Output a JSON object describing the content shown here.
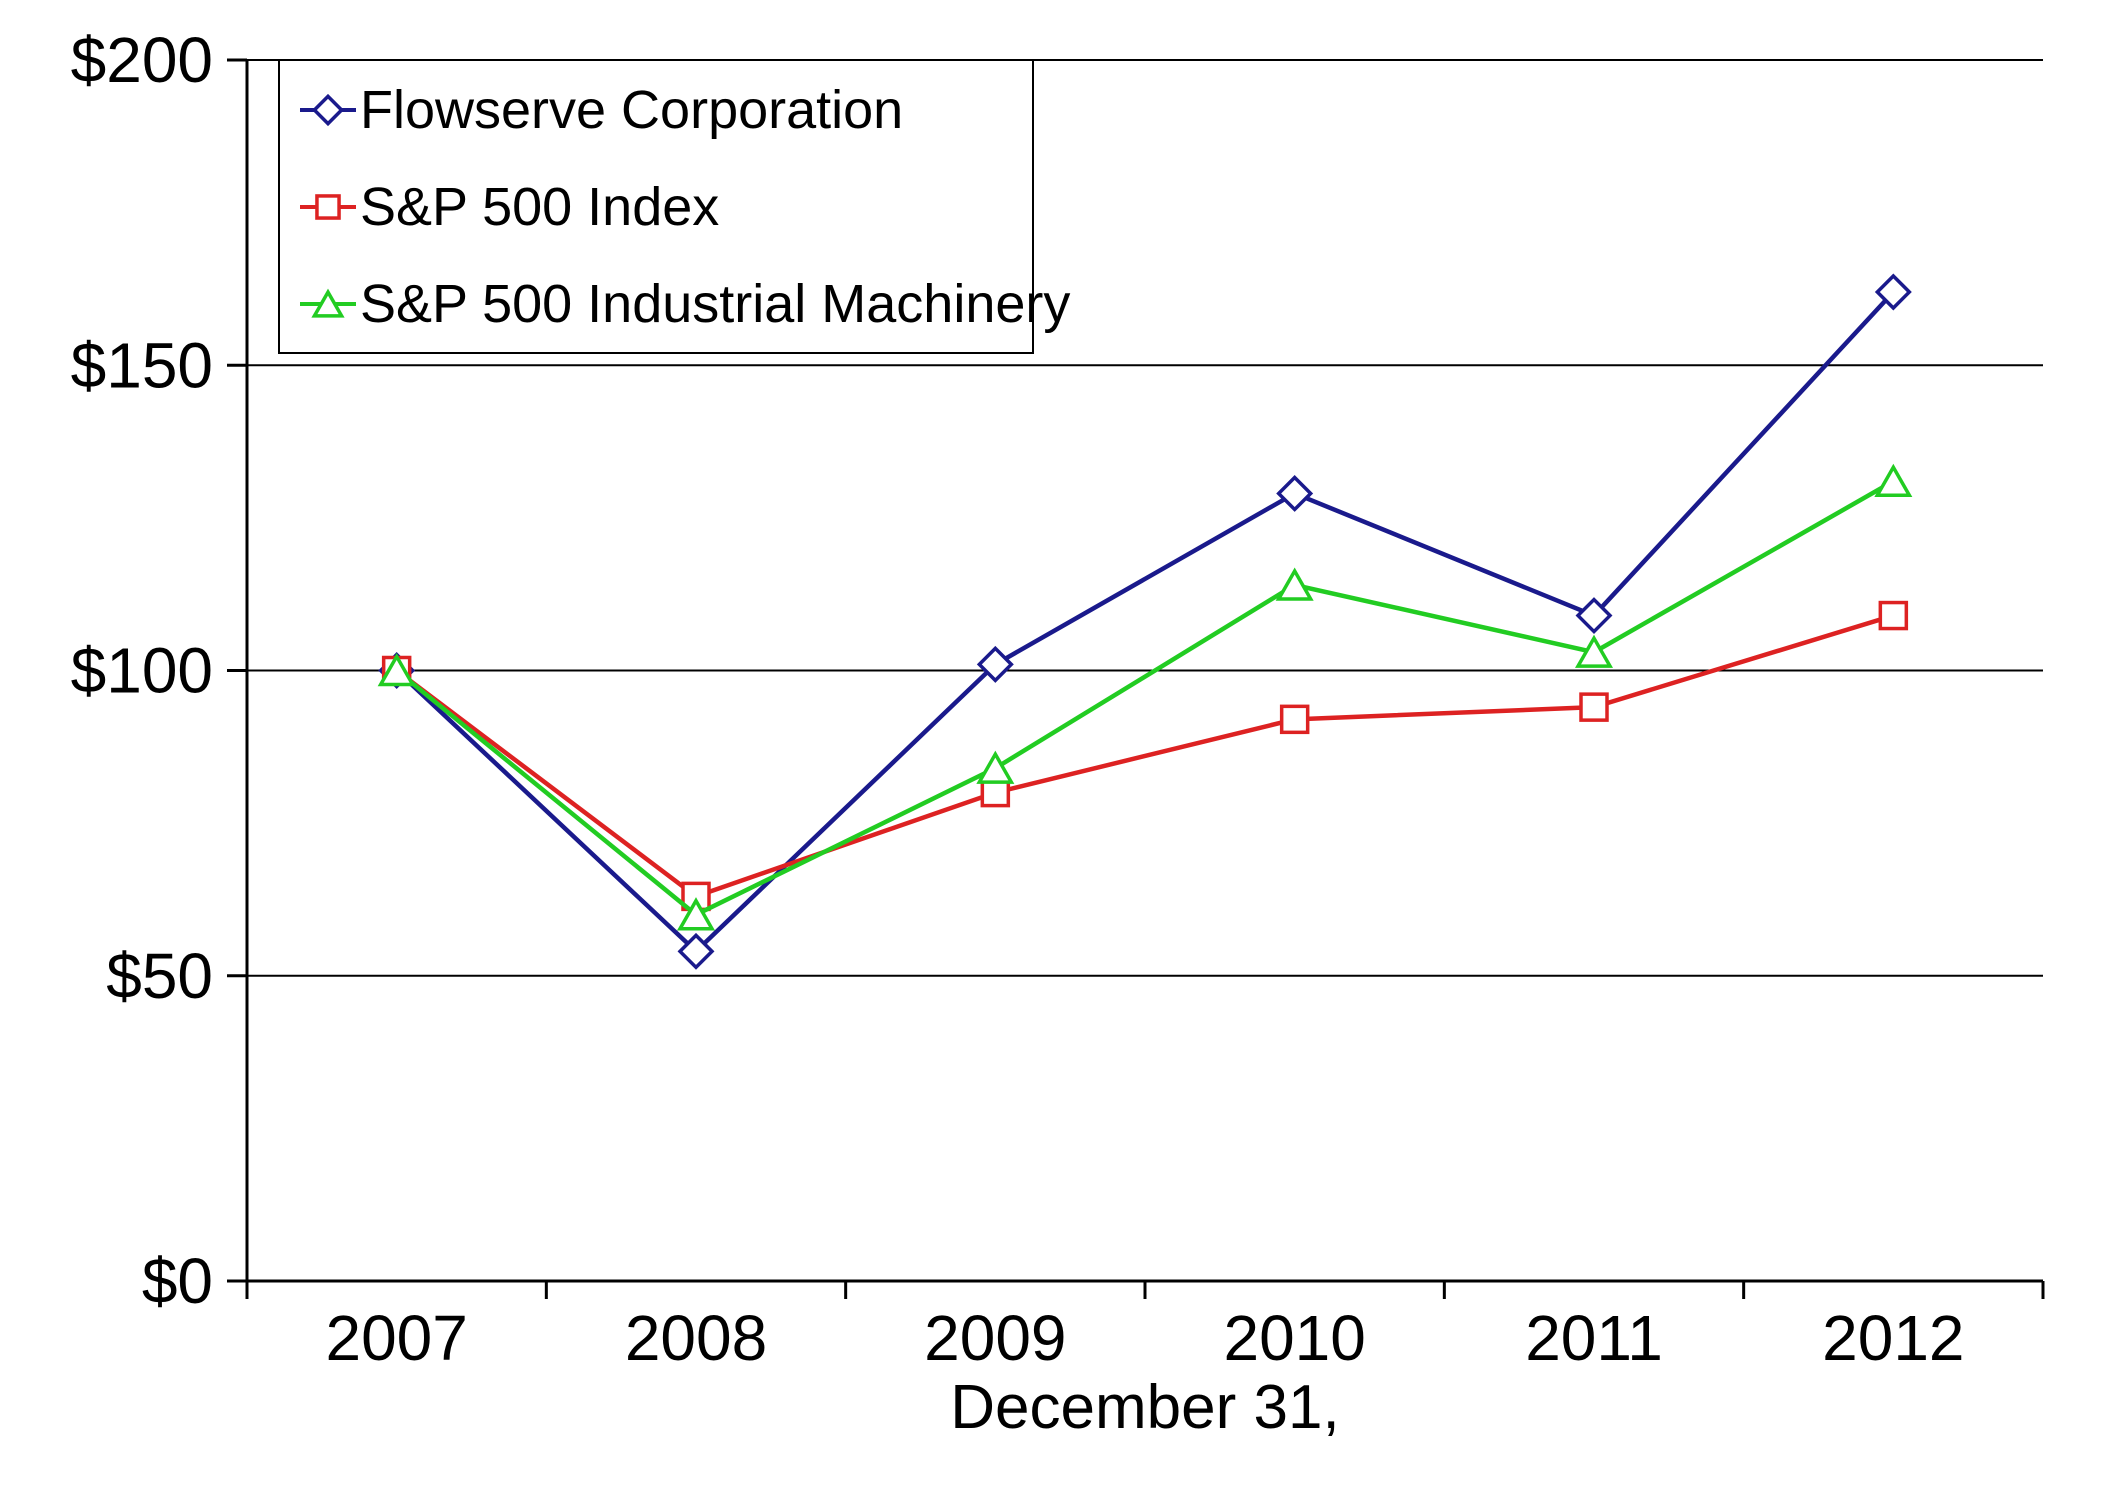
{
  "chart_data": {
    "type": "line",
    "title": "",
    "xlabel": "December 31,",
    "ylabel": "",
    "categories": [
      "2007",
      "2008",
      "2009",
      "2010",
      "2011",
      "2012"
    ],
    "series": [
      {
        "name": "Flowserve Corporation",
        "marker": "diamond",
        "color": "#1A1A8C",
        "values": [
          100,
          54,
          101,
          129,
          109,
          162
        ]
      },
      {
        "name": "S&P 500 Index",
        "marker": "square",
        "color": "#DD2222",
        "values": [
          100,
          63,
          80,
          92,
          94,
          109
        ]
      },
      {
        "name": "S&P 500 Industrial Machinery",
        "marker": "triangle",
        "color": "#22CC22",
        "values": [
          100,
          60,
          84,
          114,
          103,
          131
        ]
      }
    ],
    "ylim": [
      0,
      200
    ],
    "y_ticks": [
      {
        "value": 0,
        "label": "$0"
      },
      {
        "value": 50,
        "label": "$50"
      },
      {
        "value": 100,
        "label": "$100"
      },
      {
        "value": 150,
        "label": "$150"
      },
      {
        "value": 200,
        "label": "$200"
      }
    ],
    "grid": "horizontal",
    "legend_position": "top-left-inside",
    "axis_color": "#000000",
    "background": "#FFFFFF"
  }
}
